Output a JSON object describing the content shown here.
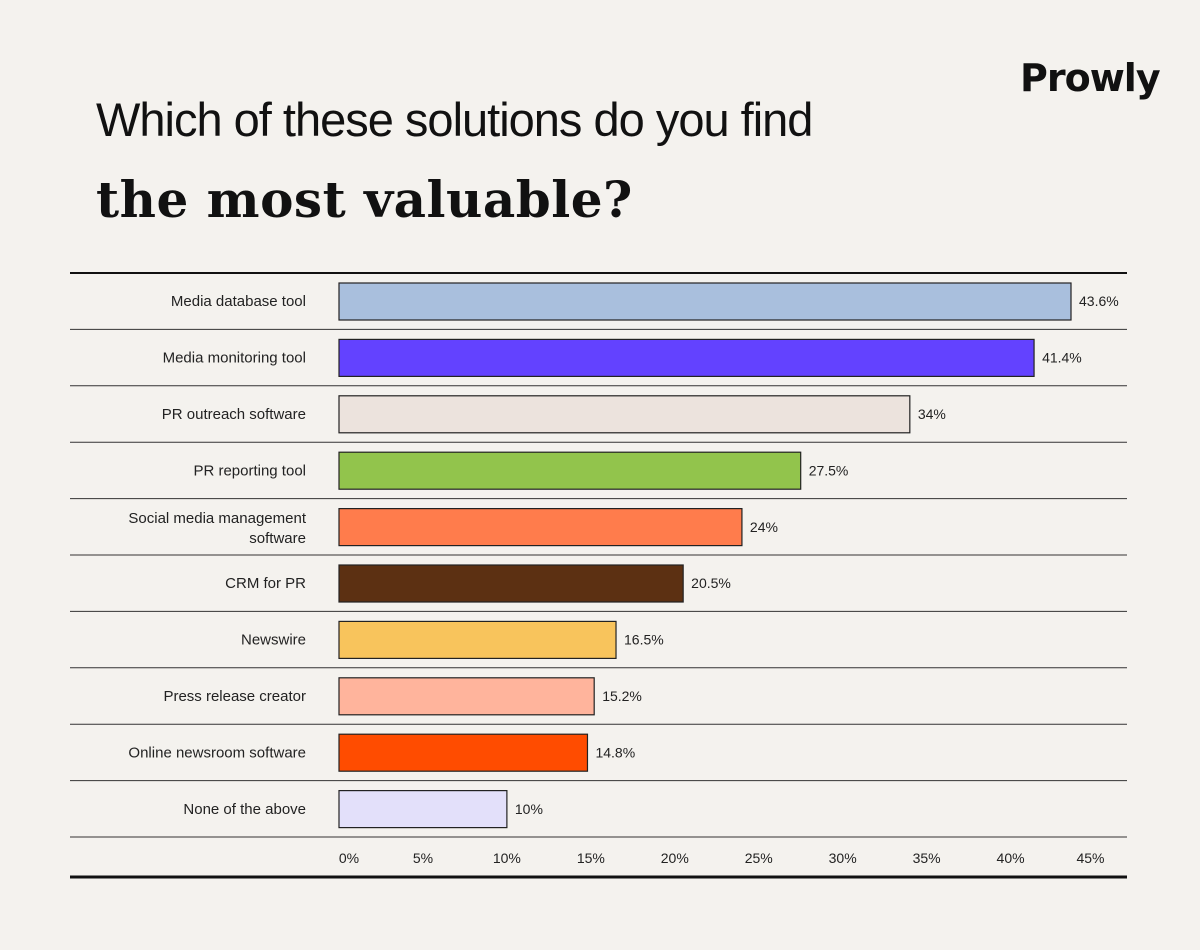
{
  "brand": "Prowly",
  "title_line1": "Which of these solutions do you find",
  "title_line2": "the most valuable?",
  "chart_data": {
    "type": "bar",
    "orientation": "horizontal",
    "title": "Which of these solutions do you find the most valuable?",
    "categories": [
      "Media database tool",
      "Media monitoring tool",
      "PR outreach software",
      "PR reporting tool",
      "Social media management software",
      "CRM for PR",
      "Newswire",
      "Press release creator",
      "Online newsroom software",
      "None of the above"
    ],
    "values": [
      43.6,
      41.4,
      34,
      27.5,
      24,
      20.5,
      16.5,
      15.2,
      14.8,
      10
    ],
    "value_labels": [
      "43.6%",
      "41.4%",
      "34%",
      "27.5%",
      "24%",
      "20.5%",
      "16.5%",
      "15.2%",
      "14.8%",
      "10%"
    ],
    "colors": [
      "#a9bfdd",
      "#6342ff",
      "#ece3dd",
      "#92c44c",
      "#ff7c4c",
      "#5c3012",
      "#f8c45c",
      "#ffb49c",
      "#ff4c00",
      "#e3e0fa"
    ],
    "xlim": [
      0,
      45
    ],
    "xticks": [
      0,
      5,
      10,
      15,
      20,
      25,
      30,
      35,
      40,
      45
    ],
    "xtick_labels": [
      "0%",
      "5%",
      "10%",
      "15%",
      "20%",
      "25%",
      "30%",
      "35%",
      "40%",
      "45%"
    ],
    "grid": "horizontal row separators",
    "legend": "none"
  }
}
